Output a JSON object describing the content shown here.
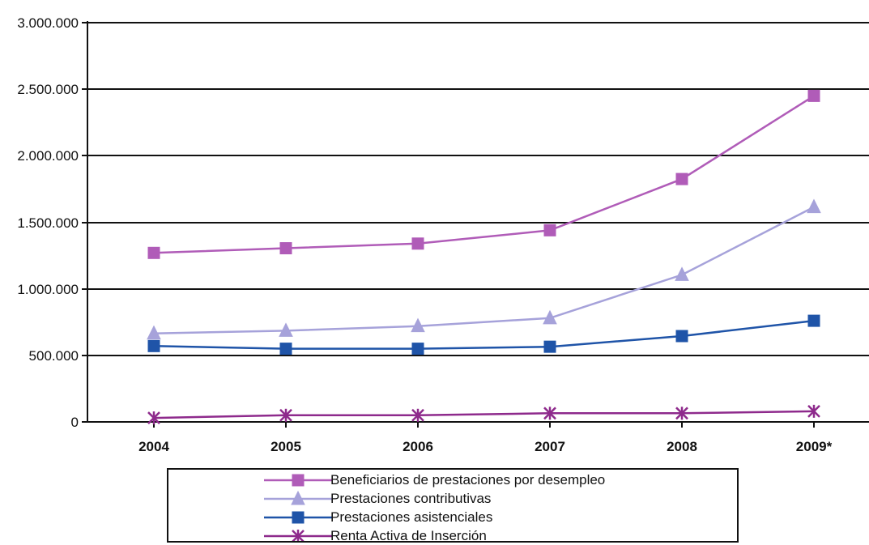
{
  "chart_data": {
    "type": "line",
    "title": "",
    "xlabel": "",
    "ylabel": "",
    "categories": [
      "2004",
      "2005",
      "2006",
      "2007",
      "2008",
      "2009*"
    ],
    "ylim": [
      0,
      3000000
    ],
    "yticks": [
      0,
      500000,
      1000000,
      1500000,
      2000000,
      2500000,
      3000000
    ],
    "ytick_labels": [
      "0",
      "500.000",
      "1.000.000",
      "1.500.000",
      "2.000.000",
      "2.500.000",
      "3.000.000"
    ],
    "grid": true,
    "legend_position": "bottom",
    "series": [
      {
        "name": "Beneficiarios de prestaciones por desempleo",
        "marker": "square",
        "color": "#b05cb8",
        "values": [
          1270000,
          1305000,
          1340000,
          1440000,
          1825000,
          2450000
        ]
      },
      {
        "name": "Prestaciones contributivas",
        "marker": "triangle",
        "color": "#a6a2da",
        "values": [
          665000,
          685000,
          720000,
          780000,
          1105000,
          1615000
        ]
      },
      {
        "name": "Prestaciones asistenciales",
        "marker": "square",
        "color": "#1f54a8",
        "values": [
          570000,
          550000,
          550000,
          565000,
          645000,
          760000
        ]
      },
      {
        "name": "Renta Activa de Inserción",
        "marker": "star",
        "color": "#8e2a8c",
        "values": [
          30000,
          50000,
          50000,
          65000,
          65000,
          80000
        ]
      }
    ]
  }
}
